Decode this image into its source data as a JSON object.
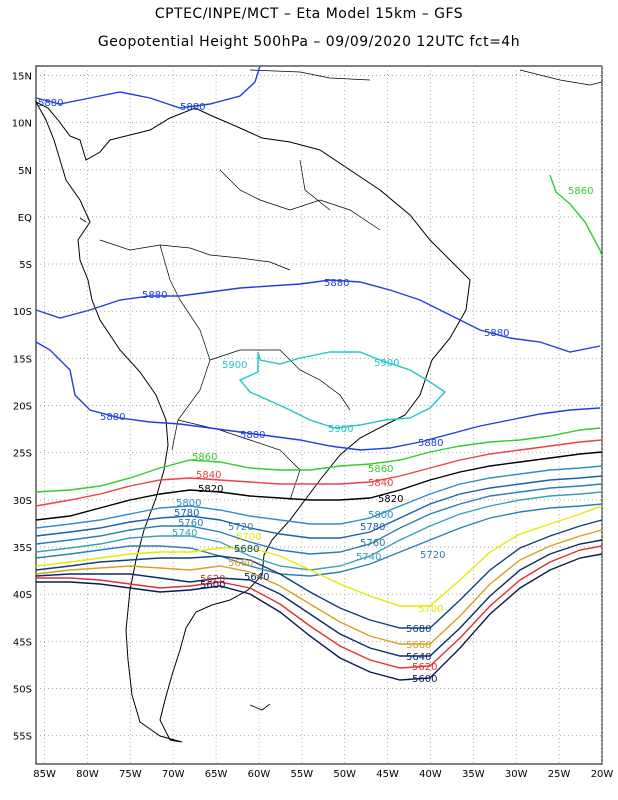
{
  "title": {
    "line1": "CPTEC/INPE/MCT –  Eta Model 15km – GFS",
    "line2": "Geopotential Height 500hPa – 09/09/2020 12UTC fct=4h"
  },
  "axes": {
    "lat_labels": [
      "15N",
      "10N",
      "5N",
      "EQ",
      "5S",
      "10S",
      "15S",
      "20S",
      "25S",
      "30S",
      "35S",
      "40S",
      "45S",
      "50S",
      "55S"
    ],
    "lon_labels": [
      "85W",
      "80W",
      "75W",
      "70W",
      "65W",
      "60W",
      "55W",
      "50W",
      "45W",
      "40W",
      "35W",
      "30W",
      "25W",
      "20W"
    ],
    "lat_range": [
      -58,
      16
    ],
    "lon_range": [
      -86,
      -20
    ],
    "grid": "dotted"
  },
  "contours": [
    {
      "level": "5900",
      "color": "#1ec8c8",
      "labels": [
        "5900",
        "5900",
        "5900"
      ]
    },
    {
      "level": "5880",
      "color": "#1f3fe0",
      "labels": [
        "5880",
        "5880",
        "5880",
        "5880",
        "5880",
        "5880",
        "5880"
      ]
    },
    {
      "level": "5860",
      "color": "#30cc30",
      "labels": [
        "5860",
        "5860",
        "5860"
      ]
    },
    {
      "level": "5840",
      "color": "#ee4040",
      "labels": [
        "5840",
        "5840"
      ]
    },
    {
      "level": "5820",
      "color": "#000000",
      "labels": [
        "5820",
        "5820"
      ]
    },
    {
      "level": "5800",
      "color": "#2d8fc9",
      "labels": [
        "5800",
        "5800"
      ]
    },
    {
      "level": "5780",
      "color": "#1a5fb0",
      "labels": [
        "5780",
        "5780"
      ]
    },
    {
      "level": "5760",
      "color": "#2a7fb0",
      "labels": [
        "5760",
        "5760"
      ]
    },
    {
      "level": "5740",
      "color": "#3aa0b8",
      "labels": [
        "5740",
        "5740"
      ]
    },
    {
      "level": "5720",
      "color": "#2e7fb8",
      "labels": [
        "5720",
        "5720"
      ]
    },
    {
      "level": "5700",
      "color": "#e8e800",
      "labels": [
        "5700",
        "5700"
      ]
    },
    {
      "level": "5680",
      "color": "#10407a",
      "labels": [
        "5680",
        "5680"
      ]
    },
    {
      "level": "5660",
      "color": "#d8a020",
      "labels": [
        "5660",
        "5660"
      ]
    },
    {
      "level": "5640",
      "color": "#0a2a6a",
      "labels": [
        "5640",
        "5640"
      ]
    },
    {
      "level": "5620",
      "color": "#e03030",
      "labels": [
        "5620",
        "5620"
      ]
    },
    {
      "level": "5600",
      "color": "#0a1a50",
      "labels": [
        "5600",
        "5600"
      ]
    }
  ]
}
